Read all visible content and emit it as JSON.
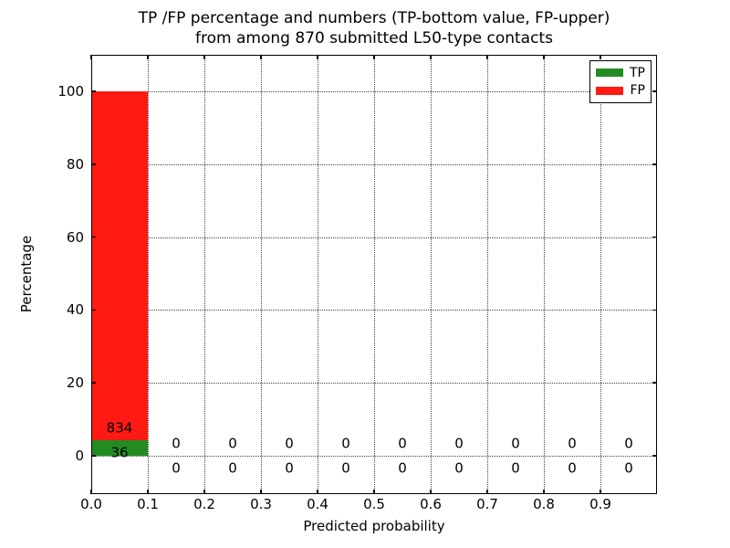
{
  "title": {
    "line1": "TP /FP percentage and numbers (TP-bottom value, FP-upper)",
    "line2": "from among 870 submitted L50-type contacts"
  },
  "chart_data": {
    "type": "bar",
    "stacked": true,
    "title": "TP /FP percentage and numbers (TP-bottom value, FP-upper)\nfrom among 870 submitted L50-type contacts",
    "xlabel": "Predicted probability",
    "ylabel": "Percentage",
    "total_submitted": 870,
    "bin_edges": [
      0.0,
      0.1,
      0.2,
      0.3,
      0.4,
      0.5,
      0.6,
      0.7,
      0.8,
      0.9,
      1.0
    ],
    "x_tick_values": [
      0.0,
      0.1,
      0.2,
      0.3,
      0.4,
      0.5,
      0.6,
      0.7,
      0.8,
      0.9
    ],
    "x_tick_labels": [
      "0.0",
      "0.1",
      "0.2",
      "0.3",
      "0.4",
      "0.5",
      "0.6",
      "0.7",
      "0.8",
      "0.9"
    ],
    "y_tick_values": [
      0,
      20,
      40,
      60,
      80,
      100
    ],
    "y_tick_labels": [
      "0",
      "20",
      "40",
      "60",
      "80",
      "100"
    ],
    "xlim": [
      0.0,
      1.0
    ],
    "ylim": [
      -10.5,
      110
    ],
    "grid": "dotted",
    "legend_position": "upper-right",
    "series": [
      {
        "name": "TP",
        "color": "#228b22",
        "counts": [
          36,
          0,
          0,
          0,
          0,
          0,
          0,
          0,
          0,
          0
        ],
        "percent": [
          4.14,
          0,
          0,
          0,
          0,
          0,
          0,
          0,
          0,
          0
        ]
      },
      {
        "name": "FP",
        "color": "#ff1a14",
        "counts": [
          834,
          0,
          0,
          0,
          0,
          0,
          0,
          0,
          0,
          0
        ],
        "percent": [
          95.86,
          0,
          0,
          0,
          0,
          0,
          0,
          0,
          0,
          0
        ]
      }
    ]
  }
}
